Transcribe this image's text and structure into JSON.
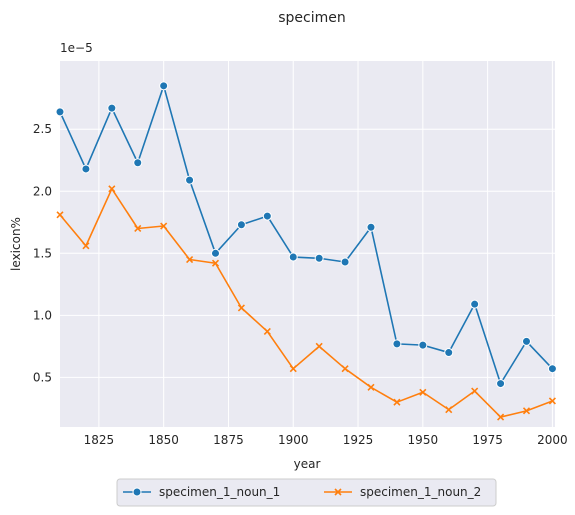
{
  "chart_data": {
    "type": "line",
    "title": "specimen",
    "xlabel": "year",
    "ylabel": "lexicon%",
    "y_multiplier": "1e−5",
    "xlim": [
      1810,
      2001
    ],
    "ylim": [
      0.1,
      3.05
    ],
    "xticks": [
      1825,
      1850,
      1875,
      1900,
      1925,
      1950,
      1975,
      2000
    ],
    "yticks": [
      0.5,
      1.0,
      1.5,
      2.0,
      2.5
    ],
    "ytick_labels": [
      "0.5",
      "1.0",
      "1.5",
      "2.0",
      "2.5"
    ],
    "grid": true,
    "legend_position": "bottom-center",
    "x": [
      1810,
      1820,
      1830,
      1840,
      1850,
      1860,
      1870,
      1880,
      1890,
      1900,
      1910,
      1920,
      1930,
      1940,
      1950,
      1960,
      1970,
      1980,
      1990,
      2000
    ],
    "series": [
      {
        "name": "specimen_1_noun_1",
        "color": "#1f77b4",
        "marker": "circle",
        "values": [
          2.64,
          2.18,
          2.67,
          2.23,
          2.85,
          2.09,
          1.5,
          1.73,
          1.8,
          1.47,
          1.46,
          1.43,
          1.71,
          0.77,
          0.76,
          0.7,
          1.09,
          0.45,
          0.79,
          0.57
        ]
      },
      {
        "name": "specimen_1_noun_2",
        "color": "#ff7f0e",
        "marker": "x",
        "values": [
          1.81,
          1.56,
          2.02,
          1.7,
          1.72,
          1.45,
          1.42,
          1.06,
          0.87,
          0.57,
          0.75,
          0.57,
          0.42,
          0.3,
          0.38,
          0.24,
          0.39,
          0.18,
          0.23,
          0.31
        ]
      }
    ]
  }
}
